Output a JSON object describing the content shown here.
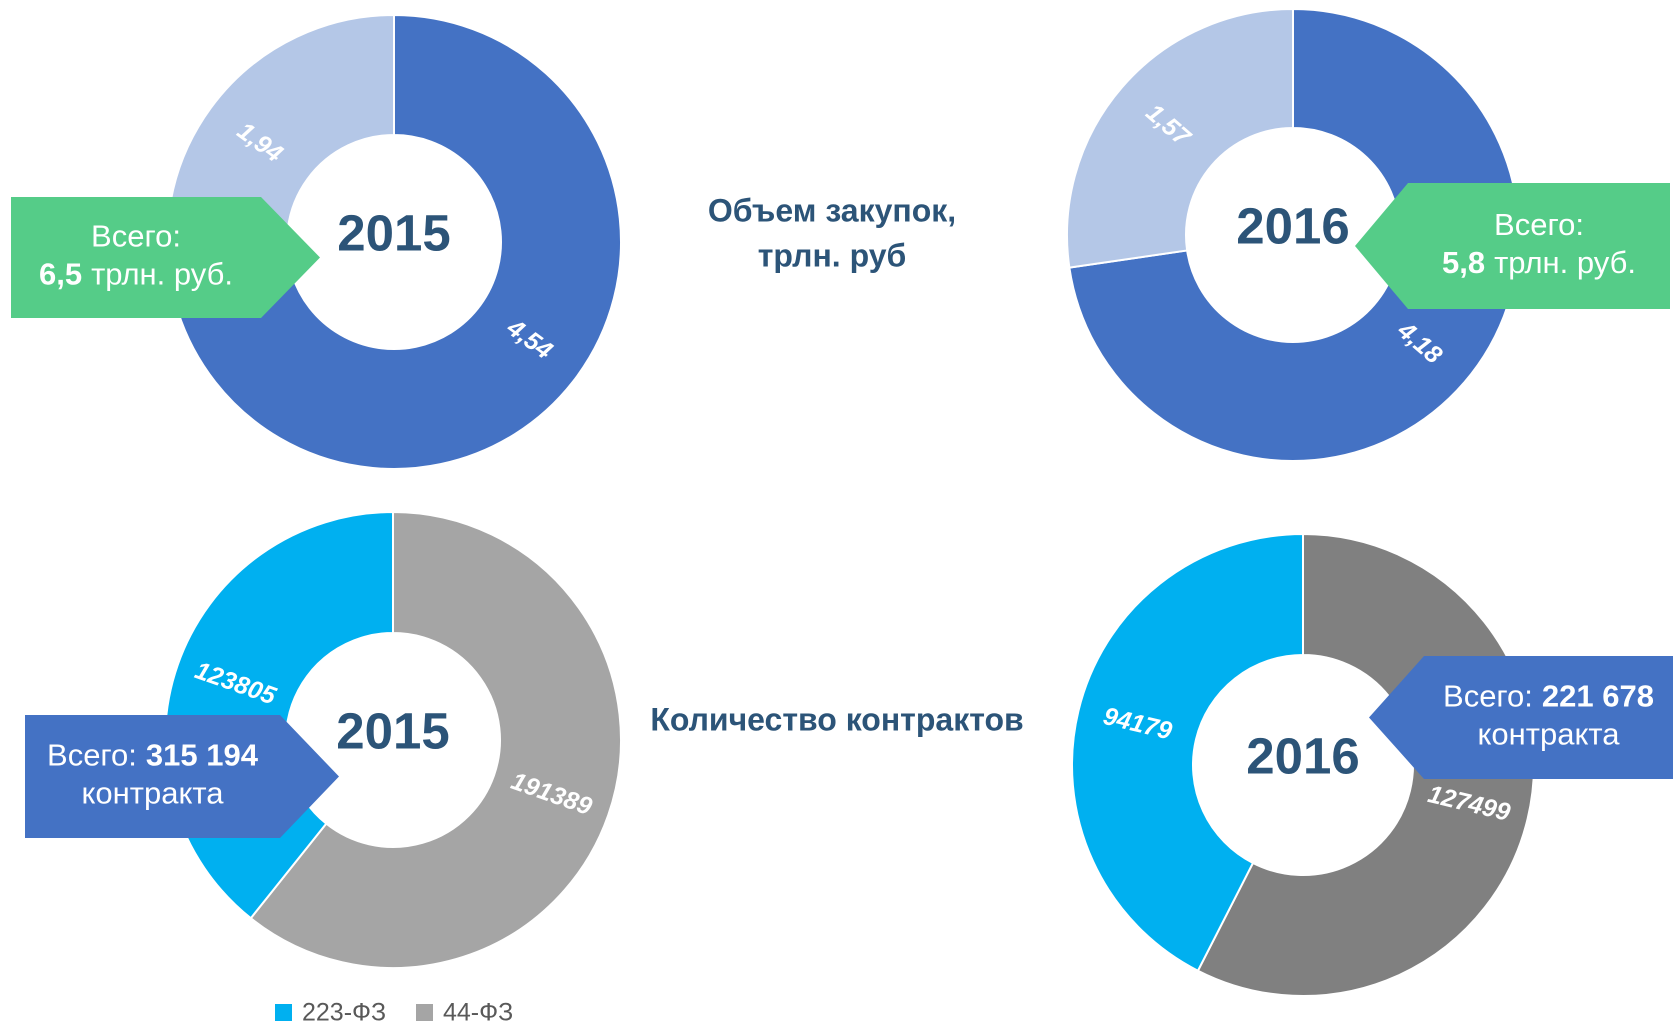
{
  "section_titles": [
    [
      "Объем закупок,",
      "трлн. руб"
    ],
    [
      "Количество контрактов"
    ]
  ],
  "chart_data": [
    {
      "type": "pie",
      "donut": true,
      "title": "2015",
      "values": [
        4.54,
        1.94
      ],
      "value_labels": [
        "4,54",
        "1,94"
      ],
      "colors": [
        "#4472c4",
        "#b4c7e7"
      ],
      "callout": {
        "label": "Всего:",
        "total": "6,5",
        "unit": "трлн. руб.",
        "color": "#55cc88",
        "side": "left"
      }
    },
    {
      "type": "pie",
      "donut": true,
      "title": "2016",
      "values": [
        4.18,
        1.57
      ],
      "value_labels": [
        "4,18",
        "1,57"
      ],
      "colors": [
        "#4472c4",
        "#b4c7e7"
      ],
      "callout": {
        "label": "Всего:",
        "total": "5,8",
        "unit": "трлн. руб.",
        "color": "#55cc88",
        "side": "right"
      }
    },
    {
      "type": "pie",
      "donut": true,
      "title": "2015",
      "values": [
        191389,
        123805
      ],
      "colors": [
        "#a5a5a5",
        "#00b0f0"
      ],
      "categories": [
        "44-ФЗ",
        "223-ФЗ"
      ],
      "legend": "bottom",
      "callout": {
        "label": "Всего:",
        "total": "315 194",
        "unit": "контракта",
        "color": "#4472c4",
        "side": "left"
      }
    },
    {
      "type": "pie",
      "donut": true,
      "title": "2016",
      "values": [
        127499,
        94179
      ],
      "colors": [
        "#808080",
        "#00b0f0"
      ],
      "callout": {
        "label": "Всего:",
        "total": "221 678",
        "unit": "контракта",
        "color": "#4472c4",
        "side": "right"
      }
    }
  ]
}
